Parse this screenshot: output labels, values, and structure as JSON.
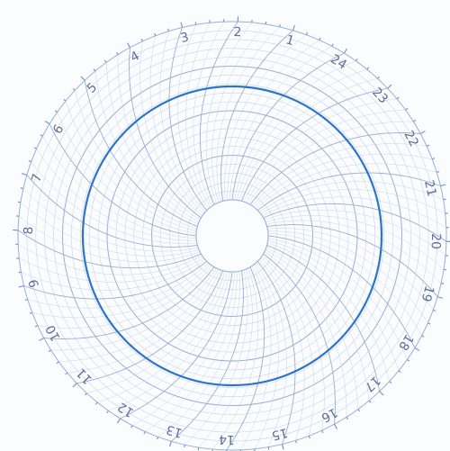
{
  "chart": {
    "hour_labels": [
      "1",
      "2",
      "3",
      "4",
      "5",
      "6",
      "7",
      "8",
      "9",
      "10",
      "11",
      "12",
      "13",
      "14",
      "15",
      "16",
      "17",
      "18",
      "19",
      "20",
      "21",
      "22",
      "23",
      "24"
    ],
    "recorded_trace": "near-constant circular pen trace",
    "colors": {
      "paper": "#fbfcfe",
      "grid": "#9aaed6",
      "grid_light": "#c7d3ea",
      "rim": "#7f96c8",
      "trace": "#2a74c9",
      "label": "#5e6f98"
    }
  }
}
